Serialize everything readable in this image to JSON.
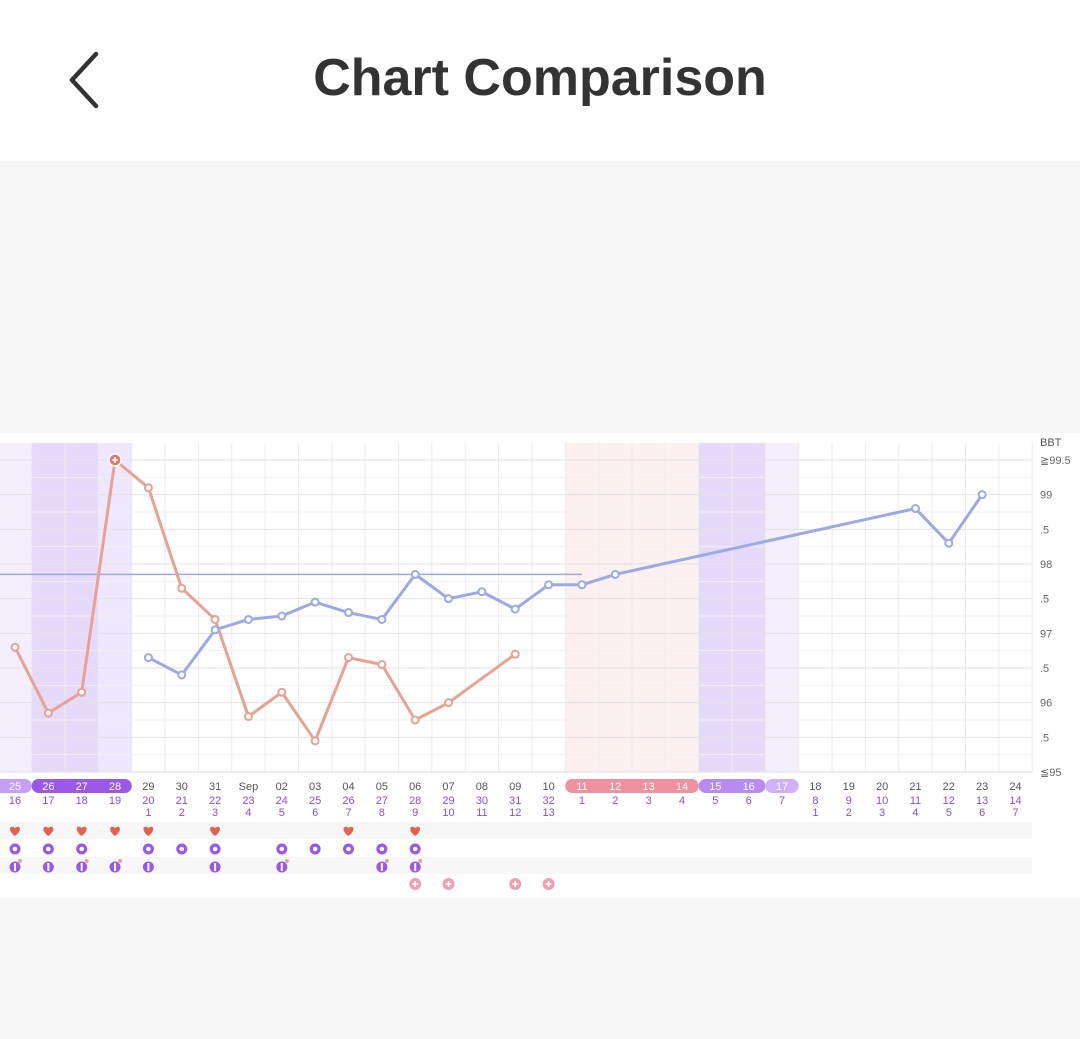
{
  "header": {
    "title": "Chart Comparison"
  },
  "chart": {
    "y_axis": {
      "title": "BBT",
      "ticks": [
        {
          "v": 99.5,
          "t": "≧99.5"
        },
        {
          "v": 99,
          "t": "99"
        },
        {
          "v": 98.5,
          "t": ".5"
        },
        {
          "v": 98,
          "t": "98"
        },
        {
          "v": 97.5,
          "t": ".5"
        },
        {
          "v": 97,
          "t": "97"
        },
        {
          "v": 96.5,
          "t": ".5"
        },
        {
          "v": 96,
          "t": "96"
        },
        {
          "v": 95.5,
          "t": ".5"
        },
        {
          "v": 95,
          "t": "≦95"
        }
      ]
    },
    "dates_row1": [
      "25",
      "26",
      "27",
      "28",
      "29",
      "30",
      "31",
      "Sep",
      "02",
      "03",
      "04",
      "05",
      "06",
      "07",
      "08",
      "09",
      "10",
      "11",
      "12",
      "13",
      "14",
      "15",
      "16",
      "17",
      "18",
      "19",
      "20",
      "21",
      "22",
      "23",
      "24"
    ],
    "dates_row2": [
      "16",
      "17",
      "18",
      "19",
      "20",
      "21",
      "22",
      "23",
      "24",
      "25",
      "26",
      "27",
      "28",
      "29",
      "30",
      "31",
      "32",
      "1",
      "2",
      "3",
      "4",
      "5",
      "6",
      "7",
      "8",
      "9",
      "10",
      "11",
      "12",
      "13",
      "14"
    ],
    "dates_row3": [
      "",
      "",
      "",
      "",
      "1",
      "2",
      "3",
      "4",
      "5",
      "6",
      "7",
      "8",
      "9",
      "10",
      "11",
      "12",
      "13",
      "",
      "",
      "",
      "",
      "",
      "",
      "",
      "1",
      "2",
      "3",
      "4",
      "5",
      "6",
      "7"
    ],
    "colors": {
      "coral": "#e8a292",
      "blue": "#9ba9e4",
      "purple": "#a774e8",
      "pink": "#f0919f"
    }
  },
  "chart_data": {
    "type": "line",
    "x": [
      "25",
      "26",
      "27",
      "28",
      "29",
      "30",
      "31",
      "Sep",
      "02",
      "03",
      "04",
      "05",
      "06",
      "07",
      "08",
      "09",
      "10",
      "11",
      "12",
      "13",
      "14",
      "15",
      "16",
      "17",
      "18",
      "19",
      "20",
      "21",
      "22",
      "23",
      "24"
    ],
    "series": [
      {
        "values": [
          96.8,
          95.85,
          96.15,
          99.5,
          99.1,
          97.65,
          97.2,
          95.8,
          96.15,
          95.45,
          96.65,
          96.55,
          95.75,
          96.0,
          null,
          96.7,
          null,
          null,
          null,
          null,
          null,
          null,
          null,
          null,
          null,
          null,
          null,
          null,
          null,
          null,
          null
        ]
      },
      {
        "values": [
          null,
          null,
          null,
          null,
          96.65,
          96.4,
          97.05,
          97.2,
          97.25,
          97.45,
          97.3,
          97.2,
          97.85,
          97.5,
          97.6,
          97.35,
          97.7,
          97.7,
          97.85,
          null,
          null,
          null,
          null,
          null,
          null,
          null,
          null,
          98.8,
          98.3,
          99.0,
          null
        ]
      }
    ],
    "ylabel": "BBT",
    "ylim": [
      95,
      99.5
    ],
    "grid": true
  }
}
